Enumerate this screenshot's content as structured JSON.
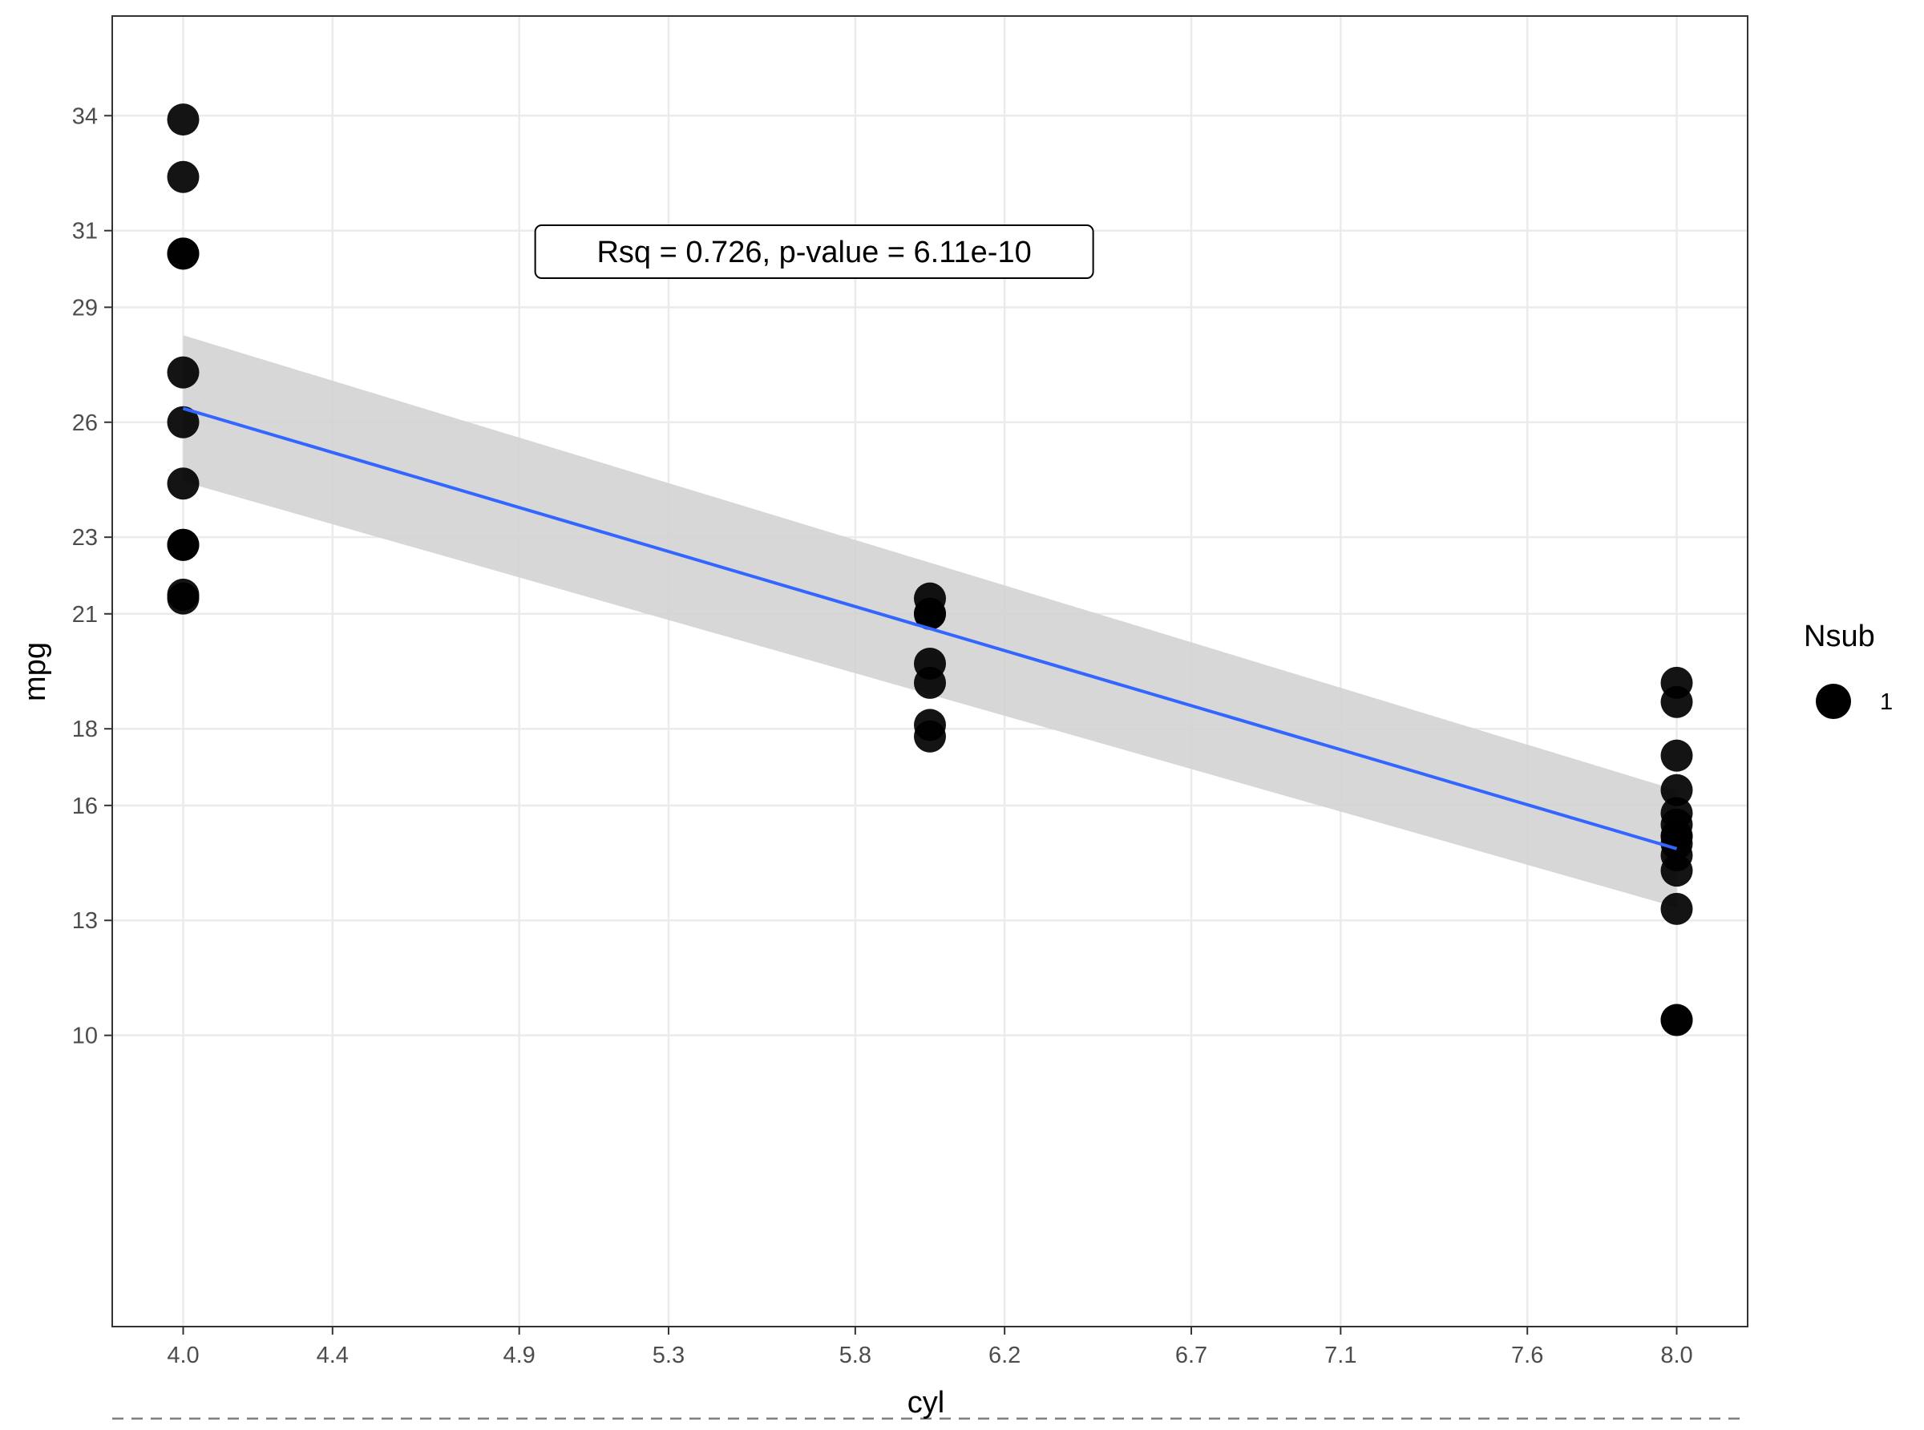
{
  "chart_data": {
    "type": "scatter",
    "xlabel": "cyl",
    "ylabel": "mpg",
    "xlim": [
      3.81,
      8.19
    ],
    "ylim": [
      2.4,
      36.6
    ],
    "x_ticks": [
      4.0,
      4.4,
      4.9,
      5.3,
      5.8,
      6.2,
      6.7,
      7.1,
      7.6,
      8.0
    ],
    "x_tick_labels": [
      "4.0",
      "4.4",
      "4.9",
      "5.3",
      "5.8",
      "6.2",
      "6.7",
      "7.1",
      "7.6",
      "8.0"
    ],
    "y_ticks": [
      10,
      13,
      16,
      18,
      21,
      23,
      26,
      29,
      31,
      34
    ],
    "y_tick_labels": [
      "10",
      "13",
      "16",
      "18",
      "21",
      "23",
      "26",
      "29",
      "31",
      "34"
    ],
    "grid": true,
    "points": [
      {
        "x": 4,
        "y": 33.9
      },
      {
        "x": 4,
        "y": 32.4
      },
      {
        "x": 4,
        "y": 30.4
      },
      {
        "x": 4,
        "y": 30.4
      },
      {
        "x": 4,
        "y": 27.3
      },
      {
        "x": 4,
        "y": 26.0
      },
      {
        "x": 4,
        "y": 24.4
      },
      {
        "x": 4,
        "y": 22.8
      },
      {
        "x": 4,
        "y": 22.8
      },
      {
        "x": 4,
        "y": 21.5
      },
      {
        "x": 4,
        "y": 21.4
      },
      {
        "x": 6,
        "y": 21.4
      },
      {
        "x": 6,
        "y": 21.0
      },
      {
        "x": 6,
        "y": 21.0
      },
      {
        "x": 6,
        "y": 19.7
      },
      {
        "x": 6,
        "y": 19.2
      },
      {
        "x": 6,
        "y": 18.1
      },
      {
        "x": 6,
        "y": 17.8
      },
      {
        "x": 8,
        "y": 19.2
      },
      {
        "x": 8,
        "y": 18.7
      },
      {
        "x": 8,
        "y": 17.3
      },
      {
        "x": 8,
        "y": 16.4
      },
      {
        "x": 8,
        "y": 15.8
      },
      {
        "x": 8,
        "y": 15.5
      },
      {
        "x": 8,
        "y": 15.2
      },
      {
        "x": 8,
        "y": 15.2
      },
      {
        "x": 8,
        "y": 15.0
      },
      {
        "x": 8,
        "y": 14.7
      },
      {
        "x": 8,
        "y": 14.3
      },
      {
        "x": 8,
        "y": 13.3
      },
      {
        "x": 8,
        "y": 10.4
      },
      {
        "x": 8,
        "y": 10.4
      }
    ],
    "regression": {
      "x": [
        4,
        8
      ],
      "y": [
        26.36,
        14.87
      ],
      "ci_lower": [
        24.45,
        13.34
      ],
      "ci_upper": [
        28.27,
        16.4
      ],
      "color": "#3366ff",
      "ci_color": "#d3d3d3"
    },
    "reference_line": {
      "y": 0,
      "style": "dashed",
      "color": "#808080"
    },
    "annotation": {
      "text": "Rsq = 0.726, p-value = 6.11e-10",
      "x": 5.69,
      "y": 30.45
    },
    "legend": {
      "title": "Nsub",
      "entries": [
        "1"
      ],
      "placement": "right"
    },
    "point_color": "#000000"
  }
}
